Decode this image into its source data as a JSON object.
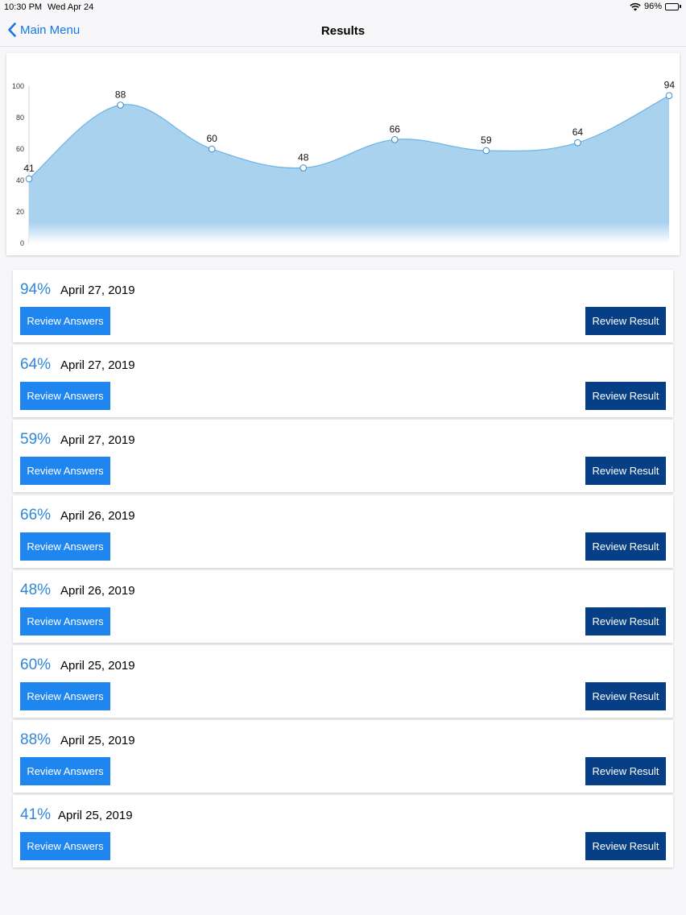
{
  "status_bar": {
    "time": "10:30 PM",
    "date": "Wed Apr 24",
    "battery": "96%"
  },
  "nav": {
    "back_label": "Main Menu",
    "title": "Results"
  },
  "chart_data": {
    "type": "area",
    "x": [
      1,
      2,
      3,
      4,
      5,
      6,
      7,
      8
    ],
    "values": [
      41,
      88,
      60,
      48,
      66,
      59,
      64,
      94
    ],
    "data_labels": [
      "41",
      "88",
      "60",
      "48",
      "66",
      "59",
      "64",
      "94"
    ],
    "y_ticks": [
      "0",
      "20",
      "40",
      "60",
      "80",
      "100"
    ],
    "ylim": [
      0,
      100
    ],
    "fill_color": "#a9d2ef",
    "line_color": "#6cb3e3",
    "grid": false
  },
  "results": [
    {
      "score": "94%",
      "date": "April 27, 2019",
      "answers_label": "Review Answers",
      "result_label": "Review Result"
    },
    {
      "score": "64%",
      "date": "April 27, 2019",
      "answers_label": "Review Answers",
      "result_label": "Review Result"
    },
    {
      "score": "59%",
      "date": "April 27, 2019",
      "answers_label": "Review Answers",
      "result_label": "Review Result"
    },
    {
      "score": "66%",
      "date": "April 26, 2019",
      "answers_label": "Review Answers",
      "result_label": "Review Result"
    },
    {
      "score": "48%",
      "date": "April 26, 2019",
      "answers_label": "Review Answers",
      "result_label": "Review Result"
    },
    {
      "score": "60%",
      "date": "April 25, 2019",
      "answers_label": "Review Answers",
      "result_label": "Review Result"
    },
    {
      "score": "88%",
      "date": "April 25, 2019",
      "answers_label": "Review Answers",
      "result_label": "Review Result"
    },
    {
      "score": "41%",
      "date": "April 25, 2019",
      "answers_label": "Review Answers",
      "result_label": "Review Result"
    }
  ],
  "colors": {
    "accent": "#1f86f0",
    "dark_button": "#073f86",
    "score_text": "#2f87d8",
    "nav_link": "#1777e6"
  },
  "icons": {
    "back": "chevron-left-icon",
    "wifi": "wifi-icon",
    "battery": "battery-icon"
  }
}
